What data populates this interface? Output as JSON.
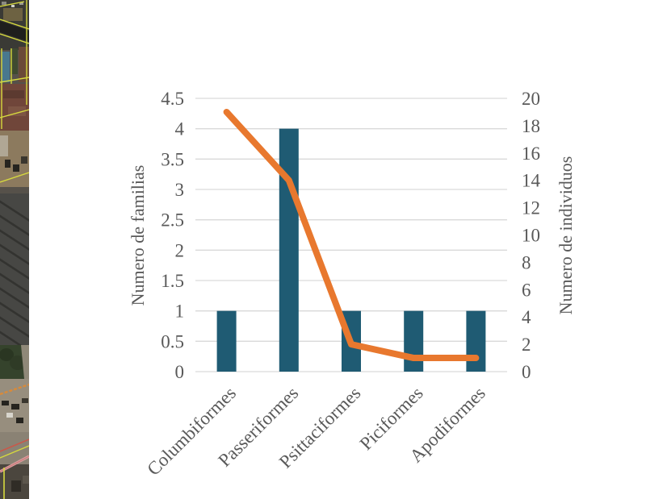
{
  "page": {
    "background_color": "#ffffff"
  },
  "aerial_strip": {
    "kind": "satellite-photo-strip"
  },
  "chart_data": {
    "type": "bar",
    "combo": "bar+line",
    "title": "",
    "categories": [
      "Columbiformes",
      "Passeriformes",
      "Psittaciformes",
      "Piciformes",
      "Apodiformes"
    ],
    "series": [
      {
        "name": "Numero de familias",
        "type": "bar",
        "axis": "left",
        "color": "#1F5B73",
        "values": [
          1,
          4,
          1,
          1,
          1
        ]
      },
      {
        "name": "Numero de individuos",
        "type": "line",
        "axis": "right",
        "color": "#E8782E",
        "values": [
          19,
          14,
          2,
          1,
          1
        ]
      }
    ],
    "left_axis": {
      "label": "Numero de familias",
      "min": 0,
      "max": 4.5,
      "tick_step": 0.5,
      "ticks": [
        "0",
        "0.5",
        "1",
        "1.5",
        "2",
        "2.5",
        "3",
        "3.5",
        "4",
        "4.5"
      ]
    },
    "right_axis": {
      "label": "Numero de individuos",
      "min": 0,
      "max": 20,
      "tick_step": 2,
      "ticks": [
        "0",
        "2",
        "4",
        "6",
        "8",
        "10",
        "12",
        "14",
        "16",
        "18",
        "20"
      ]
    },
    "grid": true,
    "legend": false,
    "grid_color": "#D9D9D9",
    "text_color": "#595959"
  }
}
